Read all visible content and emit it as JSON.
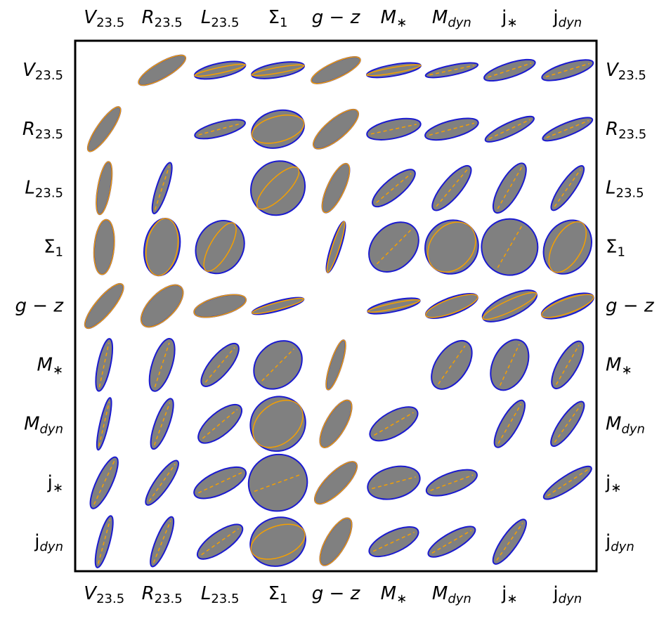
{
  "chart_data": {
    "type": "ellipse-matrix",
    "labels": [
      {
        "main": "V",
        "sub": "23.5",
        "main_italic": true,
        "sub_italic": false
      },
      {
        "main": "R",
        "sub": "23.5",
        "main_italic": true,
        "sub_italic": false
      },
      {
        "main": "L",
        "sub": "23.5",
        "main_italic": true,
        "sub_italic": false
      },
      {
        "main": "Σ",
        "sub": "1",
        "main_italic": false,
        "sub_italic": false
      },
      {
        "main": "g − z",
        "main_italic": true
      },
      {
        "main": "M",
        "sub": "∗",
        "main_italic": true,
        "sub_italic": false
      },
      {
        "main": "M",
        "sub": "dyn",
        "main_italic": true,
        "sub_italic": true
      },
      {
        "main": "j",
        "sub": "∗",
        "main_italic": false,
        "sub_italic": false
      },
      {
        "main": "j",
        "sub": "dyn",
        "main_italic": false,
        "sub_italic": true
      }
    ],
    "fill_color": "#808080",
    "outline_color": "#1a1ad0",
    "inner_color": "#f5a000",
    "ellipses": [
      [
        null,
        {
          "angle": 30,
          "major": 38,
          "minor": 11,
          "inner": 11
        },
        {
          "angle": 12,
          "major": 37,
          "minor": 10,
          "inner": 4
        },
        {
          "angle": 10,
          "major": 38,
          "minor": 10,
          "inner": 4
        },
        {
          "angle": 25,
          "major": 38,
          "minor": 11,
          "inner": 11
        },
        {
          "angle": 10,
          "major": 39,
          "minor": 8,
          "inner": 4
        },
        {
          "angle": 12,
          "major": 38,
          "minor": 7,
          "inner": 0
        },
        {
          "angle": 18,
          "major": 38,
          "minor": 10,
          "inner": 0
        },
        {
          "angle": 17,
          "major": 38,
          "minor": 10,
          "inner": 0
        }
      ],
      [
        {
          "angle": 55,
          "major": 38,
          "minor": 10,
          "inner": 10
        },
        null,
        {
          "angle": 15,
          "major": 37,
          "minor": 10,
          "inner": 0
        },
        {
          "angle": 15,
          "major": 38,
          "minor": 26,
          "inner": 18
        },
        {
          "angle": 40,
          "major": 40,
          "minor": 14,
          "inner": 14
        },
        {
          "angle": 12,
          "major": 39,
          "minor": 13,
          "inner": 0
        },
        {
          "angle": 15,
          "major": 39,
          "minor": 12,
          "inner": 0
        },
        {
          "angle": 25,
          "major": 38,
          "minor": 9,
          "inner": 0
        },
        {
          "angle": 22,
          "major": 38,
          "minor": 9,
          "inner": 0
        }
      ],
      [
        {
          "angle": 80,
          "major": 38,
          "minor": 9,
          "inner": 9
        },
        {
          "angle": 72,
          "major": 38,
          "minor": 8,
          "inner": 0
        },
        null,
        {
          "angle": 45,
          "major": 40,
          "minor": 37,
          "inner": 14
        },
        {
          "angle": 65,
          "major": 38,
          "minor": 12,
          "inner": 12
        },
        {
          "angle": 40,
          "major": 38,
          "minor": 13,
          "inner": 0
        },
        {
          "angle": 50,
          "major": 40,
          "minor": 13,
          "inner": 0
        },
        {
          "angle": 60,
          "major": 40,
          "minor": 14,
          "inner": 0
        },
        {
          "angle": 55,
          "major": 38,
          "minor": 10,
          "inner": 0
        }
      ],
      [
        {
          "angle": 85,
          "major": 39,
          "minor": 14,
          "inner": 14
        },
        {
          "angle": 80,
          "major": 41,
          "minor": 25,
          "inner": 22
        },
        {
          "angle": 60,
          "major": 39,
          "minor": 33,
          "inner": 14
        },
        null,
        {
          "angle": 72,
          "major": 38,
          "minor": 7,
          "inner": 5
        },
        {
          "angle": 45,
          "major": 40,
          "minor": 30,
          "inner": 0
        },
        {
          "angle": 50,
          "major": 39,
          "minor": 37,
          "inner": 30
        },
        {
          "angle": 60,
          "major": 40,
          "minor": 40,
          "inner": 0
        },
        {
          "angle": 60,
          "major": 40,
          "minor": 32,
          "inner": 20
        }
      ],
      [
        {
          "angle": 50,
          "major": 40,
          "minor": 12,
          "inner": 12
        },
        {
          "angle": 45,
          "major": 38,
          "minor": 18,
          "inner": 18
        },
        {
          "angle": 15,
          "major": 38,
          "minor": 13,
          "inner": 13
        },
        {
          "angle": 15,
          "major": 38,
          "minor": 7,
          "inner": 5
        },
        null,
        {
          "angle": 12,
          "major": 38,
          "minor": 8,
          "inner": 4
        },
        {
          "angle": 20,
          "major": 39,
          "minor": 12,
          "inner": 10
        },
        {
          "angle": 25,
          "major": 42,
          "minor": 15,
          "inner": 8
        },
        {
          "angle": 20,
          "major": 39,
          "minor": 13,
          "inner": 10
        }
      ],
      [
        {
          "angle": 78,
          "major": 38,
          "minor": 9,
          "inner": 0
        },
        {
          "angle": 72,
          "major": 39,
          "minor": 14,
          "inner": 0
        },
        {
          "angle": 50,
          "major": 38,
          "minor": 14,
          "inner": 0
        },
        {
          "angle": 45,
          "major": 38,
          "minor": 30,
          "inner": 0
        },
        {
          "angle": 72,
          "major": 37,
          "minor": 8,
          "inner": 8
        },
        null,
        {
          "angle": 55,
          "major": 39,
          "minor": 22,
          "inner": 0
        },
        {
          "angle": 65,
          "major": 38,
          "minor": 24,
          "inner": 0
        },
        {
          "angle": 60,
          "major": 38,
          "minor": 14,
          "inner": 0
        }
      ],
      [
        {
          "angle": 77,
          "major": 38,
          "minor": 6,
          "inner": 0
        },
        {
          "angle": 70,
          "major": 38,
          "minor": 10,
          "inner": 0
        },
        {
          "angle": 40,
          "major": 38,
          "minor": 16,
          "inner": 0
        },
        {
          "angle": 40,
          "major": 40,
          "minor": 38,
          "inner": 28
        },
        {
          "angle": 60,
          "major": 38,
          "minor": 14,
          "inner": 14
        },
        {
          "angle": 30,
          "major": 38,
          "minor": 17,
          "inner": 0
        },
        null,
        {
          "angle": 60,
          "major": 38,
          "minor": 12,
          "inner": 0
        },
        {
          "angle": 55,
          "major": 38,
          "minor": 11,
          "inner": 0
        }
      ],
      [
        {
          "angle": 65,
          "major": 40,
          "minor": 11,
          "inner": 0
        },
        {
          "angle": 55,
          "major": 38,
          "minor": 10,
          "inner": 0
        },
        {
          "angle": 25,
          "major": 40,
          "minor": 16,
          "inner": 0
        },
        {
          "angle": 20,
          "major": 42,
          "minor": 40,
          "inner": 0
        },
        {
          "angle": 45,
          "major": 40,
          "minor": 14,
          "inner": 14
        },
        {
          "angle": 15,
          "major": 38,
          "minor": 22,
          "inner": 0
        },
        {
          "angle": 20,
          "major": 38,
          "minor": 14,
          "inner": 0
        },
        null,
        {
          "angle": 33,
          "major": 40,
          "minor": 10,
          "inner": 0
        }
      ],
      [
        {
          "angle": 75,
          "major": 38,
          "minor": 8,
          "inner": 0
        },
        {
          "angle": 68,
          "major": 38,
          "minor": 9,
          "inner": 0
        },
        {
          "angle": 35,
          "major": 38,
          "minor": 14,
          "inner": 0
        },
        {
          "angle": 20,
          "major": 40,
          "minor": 34,
          "inner": 22
        },
        {
          "angle": 60,
          "major": 38,
          "minor": 14,
          "inner": 14
        },
        {
          "angle": 25,
          "major": 38,
          "minor": 15,
          "inner": 0
        },
        {
          "angle": 30,
          "major": 38,
          "minor": 12,
          "inner": 0
        },
        {
          "angle": 55,
          "major": 38,
          "minor": 11,
          "inner": 0
        },
        null
      ]
    ]
  }
}
